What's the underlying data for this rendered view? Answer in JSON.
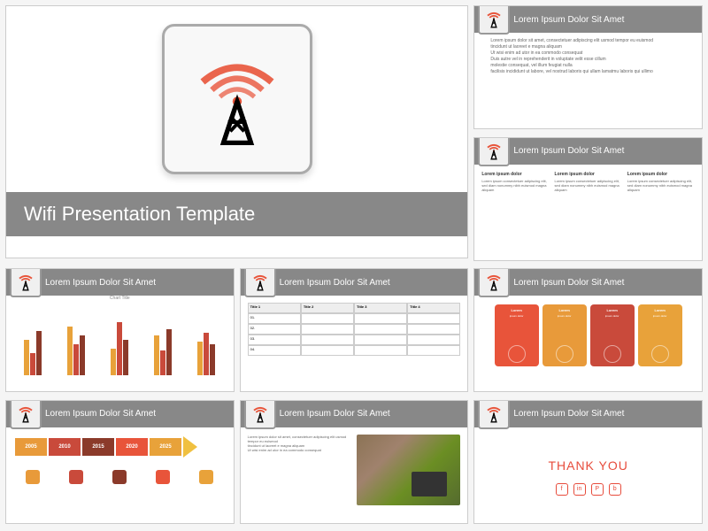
{
  "main": {
    "title": "Wifi Presentation Template"
  },
  "hdrs": {
    "t": "Lorem Ipsum Dolor Sit Amet"
  },
  "bullets": [
    "Lorem ipsum dolor sit amet, consectetuer adipiscing elit usmod tempor eu euismod",
    "tincidunt ut laoreet e magna aliquam",
    "Ut wisi enim ad utor in ea commodo consequat",
    "Duis autre vel in reprehenderit in voluptate velit esse cillum",
    "molestie consequat, vel illum feugiat nulla",
    "facilisis incididunt ut labore, vel nostrud laboris qui ullam lamatmu laboris qui ullimo"
  ],
  "col": {
    "h": "Lorem ipsum dolor",
    "t": "Lorem ipsum consectetuer adipiscing elit, sed diam nonummy nibh euismod magna aliquam"
  },
  "chart": {
    "title": "Chart Title",
    "groups": [
      {
        "bars": [
          {
            "h": 40,
            "c": "#e8a23a"
          },
          {
            "h": 25,
            "c": "#c94a3b"
          },
          {
            "h": 50,
            "c": "#8b3a2a"
          }
        ]
      },
      {
        "bars": [
          {
            "h": 55,
            "c": "#e8a23a"
          },
          {
            "h": 35,
            "c": "#c94a3b"
          },
          {
            "h": 45,
            "c": "#8b3a2a"
          }
        ]
      },
      {
        "bars": [
          {
            "h": 30,
            "c": "#e8a23a"
          },
          {
            "h": 60,
            "c": "#c94a3b"
          },
          {
            "h": 40,
            "c": "#8b3a2a"
          }
        ]
      },
      {
        "bars": [
          {
            "h": 45,
            "c": "#e8a23a"
          },
          {
            "h": 28,
            "c": "#c94a3b"
          },
          {
            "h": 52,
            "c": "#8b3a2a"
          }
        ]
      },
      {
        "bars": [
          {
            "h": 38,
            "c": "#e8a23a"
          },
          {
            "h": 48,
            "c": "#c94a3b"
          },
          {
            "h": 35,
            "c": "#8b3a2a"
          }
        ]
      }
    ]
  },
  "table": {
    "headers": [
      "Title 1",
      "Title 2",
      "Title 3",
      "Title 4"
    ],
    "rows": [
      "01.",
      "02.",
      "03.",
      "04."
    ]
  },
  "cards": [
    {
      "t": "Lorem",
      "c": "#e8543a"
    },
    {
      "t": "Lorem",
      "c": "#e89a3a"
    },
    {
      "t": "Lorem",
      "c": "#c94a3b"
    },
    {
      "t": "Lorem",
      "c": "#e8a23a"
    }
  ],
  "timeline": {
    "years": [
      {
        "y": "2005",
        "c": "#e89a3a"
      },
      {
        "y": "2010",
        "c": "#c94a3b"
      },
      {
        "y": "2015",
        "c": "#8b3a2a"
      },
      {
        "y": "2020",
        "c": "#e8543a"
      },
      {
        "y": "2025",
        "c": "#e8a23a"
      }
    ]
  },
  "thx": {
    "t": "THANK YOU",
    "icons": [
      "f",
      "in",
      "P",
      "b"
    ]
  },
  "colors": {
    "gray": "#888",
    "red": "#e74c3c",
    "signal": "#e8543a"
  }
}
